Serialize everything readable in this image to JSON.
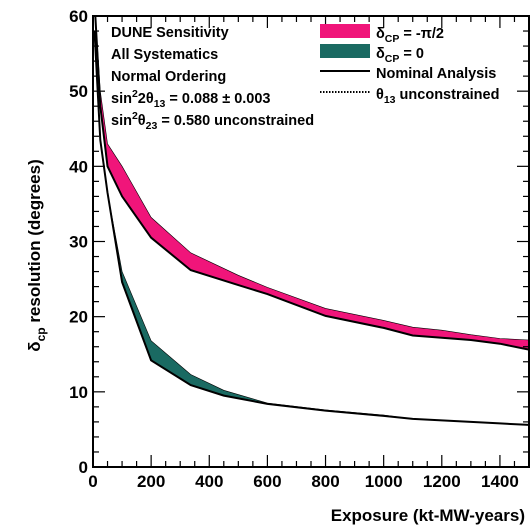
{
  "chart_data": {
    "type": "area",
    "xlabel": "Exposure (kt-MW-years)",
    "ylabel_main": "δ",
    "ylabel_sub": "cp",
    "ylabel_rest": " resolution (degrees)",
    "xlim": [
      0,
      1500
    ],
    "ylim": [
      0,
      60
    ],
    "xticks": [
      0,
      200,
      400,
      600,
      800,
      1000,
      1200,
      1400
    ],
    "yticks": [
      0,
      10,
      20,
      30,
      40,
      50,
      60
    ],
    "annotations": [
      {
        "parts": [
          {
            "t": "DUNE Sensitivity"
          }
        ]
      },
      {
        "parts": [
          {
            "t": "All Systematics"
          }
        ]
      },
      {
        "parts": [
          {
            "t": "Normal Ordering"
          }
        ]
      },
      {
        "parts": [
          {
            "t": "sin"
          },
          {
            "t": "2",
            "sup": true
          },
          {
            "t": "2θ"
          },
          {
            "t": "13",
            "sub": true
          },
          {
            "t": " = 0.088 ± 0.003"
          }
        ]
      },
      {
        "parts": [
          {
            "t": "sin"
          },
          {
            "t": "2",
            "sup": true
          },
          {
            "t": "θ"
          },
          {
            "t": "23",
            "sub": true
          },
          {
            "t": " = 0.580 unconstrained"
          }
        ]
      }
    ],
    "legend": [
      {
        "kind": "band",
        "color": "#f0157a",
        "parts": [
          {
            "t": "δ"
          },
          {
            "t": "CP",
            "sub": true
          },
          {
            "t": " = -π/2"
          }
        ]
      },
      {
        "kind": "band",
        "color": "#1a6a62",
        "parts": [
          {
            "t": "δ"
          },
          {
            "t": "CP",
            "sub": true
          },
          {
            "t": " = 0"
          }
        ]
      },
      {
        "kind": "line",
        "color": "#000000",
        "parts": [
          {
            "t": "Nominal Analysis"
          }
        ]
      },
      {
        "kind": "dotted",
        "color": "#000000",
        "parts": [
          {
            "t": "θ"
          },
          {
            "t": "13",
            "sub": true
          },
          {
            "t": " unconstrained"
          }
        ]
      }
    ],
    "series": [
      {
        "name": "δCP = -π/2",
        "color": "#f0157a",
        "x": [
          5,
          25,
          50,
          100,
          200,
          336,
          500,
          600,
          800,
          1000,
          1100,
          1200,
          1300,
          1400,
          1500
        ],
        "lower": [
          62,
          48,
          40,
          36,
          30.5,
          26.2,
          24.2,
          23,
          20.1,
          18.5,
          17.5,
          17.2,
          16.9,
          16.4,
          15.6
        ],
        "upper": [
          62,
          50,
          43,
          40,
          33.2,
          28.5,
          25.5,
          23.9,
          21.1,
          19.5,
          18.6,
          18.2,
          17.6,
          17.1,
          16.9
        ]
      },
      {
        "name": "δCP = 0",
        "color": "#1a6a62",
        "x": [
          5,
          25,
          50,
          100,
          200,
          336,
          450,
          600,
          800,
          1000,
          1100,
          1200,
          1300,
          1400,
          1500
        ],
        "lower": [
          58,
          43.5,
          36.5,
          24.6,
          14.2,
          10.9,
          9.5,
          8.4,
          7.5,
          6.8,
          6.4,
          6.2,
          6.0,
          5.8,
          5.6
        ],
        "upper": [
          58,
          43.5,
          36.5,
          26.0,
          16.8,
          12.3,
          10.2,
          8.5,
          7.6,
          6.9,
          6.4,
          6.2,
          6.0,
          5.8,
          5.6
        ]
      }
    ],
    "nominal_lines": [
      {
        "x": [
          5,
          25,
          50,
          100,
          200,
          336,
          500,
          600,
          800,
          1000,
          1100,
          1200,
          1300,
          1400,
          1500
        ],
        "y": [
          62,
          48,
          40,
          36,
          30.5,
          26.2,
          24.2,
          23,
          20.1,
          18.5,
          17.5,
          17.2,
          16.9,
          16.4,
          15.6
        ]
      },
      {
        "x": [
          5,
          25,
          50,
          100,
          200,
          336,
          450,
          600,
          800,
          1000,
          1100,
          1200,
          1300,
          1400,
          1500
        ],
        "y": [
          58,
          43.5,
          36.5,
          24.6,
          14.2,
          10.9,
          9.5,
          8.4,
          7.5,
          6.8,
          6.4,
          6.2,
          6.0,
          5.8,
          5.6
        ]
      }
    ],
    "grid": false
  }
}
